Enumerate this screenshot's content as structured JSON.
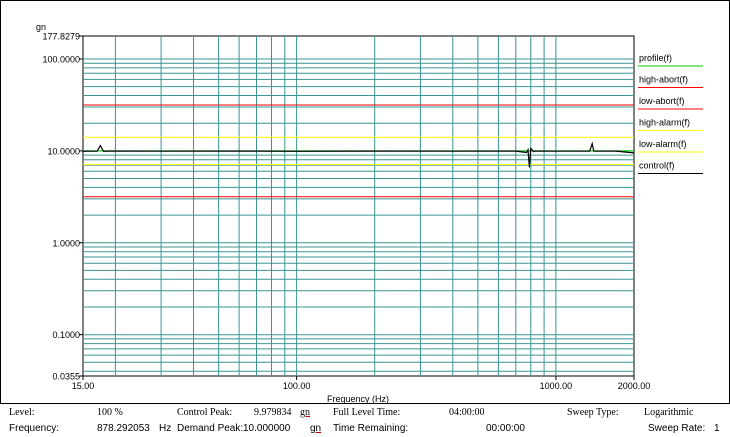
{
  "chart_data": {
    "type": "line",
    "title": "",
    "xlabel": "Frequency (Hz)",
    "ylabel": "gn",
    "x_scale": "log",
    "y_scale": "log",
    "xlim": [
      15,
      2000
    ],
    "ylim": [
      0.0355,
      177.8279
    ],
    "grid": true,
    "legend_placement": "right",
    "x_tick_labels": [
      "15.00",
      "100.00",
      "1000.00",
      "2000.00"
    ],
    "x_tick_values": [
      15,
      100,
      1000,
      2000
    ],
    "y_tick_labels": [
      "177.8279",
      "100.0000",
      "10.0000",
      "1.0000",
      "0.1000",
      "0.0355"
    ],
    "y_tick_values": [
      177.8279,
      100,
      10,
      1,
      0.1,
      0.0355
    ],
    "series": [
      {
        "name": "profile(f)",
        "color": "#00cc00",
        "x": [
          15,
          2000
        ],
        "y": [
          10,
          10
        ]
      },
      {
        "name": "high-abort(f)",
        "color": "#ff0000",
        "x": [
          15,
          2000
        ],
        "y": [
          31.6,
          31.6
        ]
      },
      {
        "name": "low-abort(f)",
        "color": "#ff0000",
        "x": [
          15,
          2000
        ],
        "y": [
          3.16,
          3.16
        ]
      },
      {
        "name": "high-alarm(f)",
        "color": "#ffff00",
        "x": [
          15,
          2000
        ],
        "y": [
          14.1,
          14.1
        ]
      },
      {
        "name": "low-alarm(f)",
        "color": "#ffff00",
        "x": [
          15,
          2000
        ],
        "y": [
          7.1,
          7.1
        ]
      },
      {
        "name": "control(f)",
        "color": "#000000",
        "x": [
          15,
          17,
          17.5,
          18,
          19,
          30,
          60,
          100,
          200,
          400,
          700,
          770,
          780,
          790,
          800,
          820,
          830,
          1000,
          1350,
          1380,
          1400,
          1450,
          1700,
          2000
        ],
        "y": [
          9.9,
          9.95,
          11.4,
          9.9,
          9.95,
          9.92,
          9.95,
          9.9,
          9.95,
          9.92,
          9.95,
          9.6,
          10.3,
          6.6,
          10.6,
          9.8,
          9.95,
          9.93,
          9.95,
          12.0,
          9.95,
          9.92,
          9.95,
          9.5
        ]
      }
    ]
  },
  "status_bar": {
    "level_label": "Level:",
    "level_value": "100 %",
    "control_peak_label": "Control Peak:",
    "control_peak_value": "9.979834",
    "control_peak_unit": "gn",
    "full_level_time_label": "Full Level Time:",
    "full_level_time_value": "04:00:00",
    "sweep_type_label": "Sweep Type:",
    "sweep_type_value": "Logarithmic",
    "frequency_label": "Frequency:",
    "frequency_value": "878.292053",
    "frequency_unit": "Hz",
    "demand_peak_label": "Demand Peak:",
    "demand_peak_value": "10.000000",
    "demand_peak_unit": "gn",
    "time_remaining_label": "Time Remaining:",
    "time_remaining_value": "00:00:00",
    "sweep_rate_label": "Sweep Rate:",
    "sweep_rate_value": "1"
  }
}
